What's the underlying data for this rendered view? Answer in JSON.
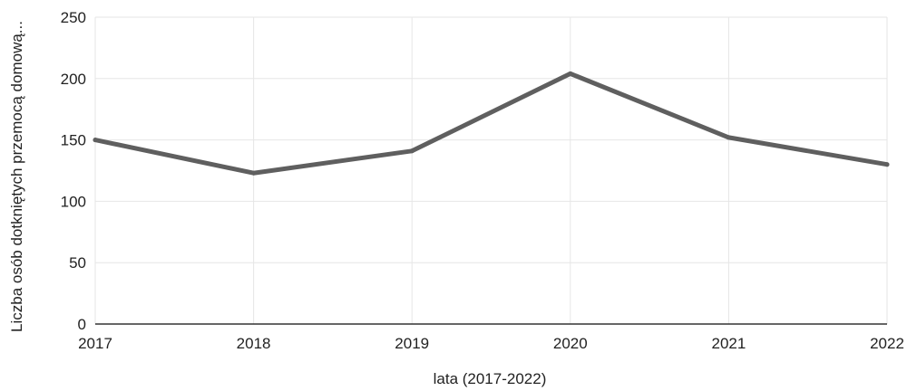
{
  "chart_data": {
    "type": "line",
    "x": [
      "2017",
      "2018",
      "2019",
      "2020",
      "2021",
      "2022"
    ],
    "series": [
      {
        "values": [
          150,
          123,
          141,
          204,
          152,
          130
        ]
      }
    ],
    "xlabel": "lata (2017-2022)",
    "ylabel": "Liczba osób dotkniętych przemocą domową...",
    "ylim": [
      0,
      250
    ],
    "yticks": [
      "0",
      "50",
      "100",
      "150",
      "200",
      "250"
    ],
    "grid": true,
    "legend": "none"
  },
  "colors": {
    "line": "#5f5f5f",
    "grid": "#e6e6e6",
    "axis": "#333333"
  }
}
